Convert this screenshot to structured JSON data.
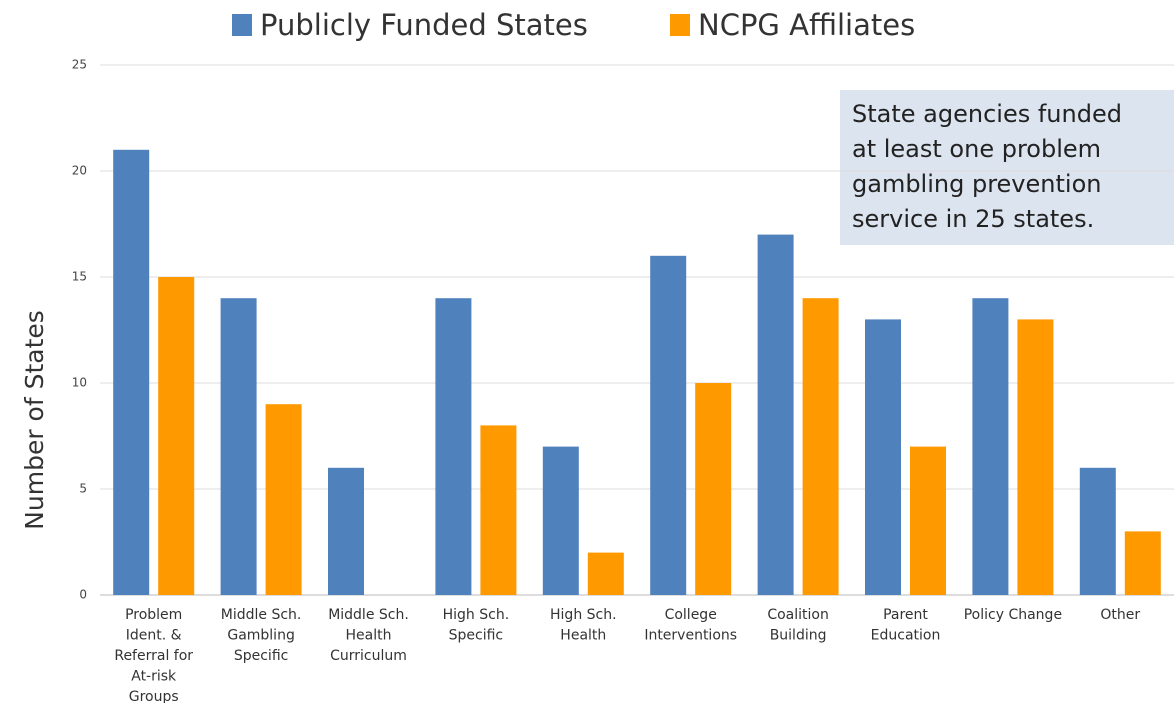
{
  "chart_data": {
    "type": "bar",
    "categories": [
      [
        "Problem",
        "Ident. &",
        "Referral for",
        "At-risk",
        "Groups"
      ],
      [
        "Middle Sch.",
        "Gambling",
        "Specific"
      ],
      [
        "Middle Sch.",
        "Health",
        "Curriculum"
      ],
      [
        "High Sch.",
        "Specific"
      ],
      [
        "High Sch.",
        "Health"
      ],
      [
        "College",
        "Interventions"
      ],
      [
        "Coalition",
        "Building"
      ],
      [
        "Parent",
        "Education"
      ],
      [
        "Policy Change"
      ],
      [
        "Other"
      ]
    ],
    "series": [
      {
        "name": "Publicly Funded States",
        "color": "#4f81bd",
        "values": [
          21,
          14,
          6,
          14,
          7,
          16,
          17,
          13,
          14,
          6
        ]
      },
      {
        "name": "NCPG Affiliates",
        "color": "#ff9900",
        "values": [
          15,
          9,
          0,
          8,
          2,
          10,
          14,
          7,
          13,
          3
        ]
      }
    ],
    "y_label": "Number of States",
    "annotation": [
      "State agencies funded",
      "at least one problem",
      "gambling prevention",
      "service in 25 states."
    ],
    "ylim": [
      0,
      25
    ],
    "yticks": [
      0,
      5,
      10,
      15,
      20,
      25
    ],
    "grid": true,
    "legend": "top"
  }
}
